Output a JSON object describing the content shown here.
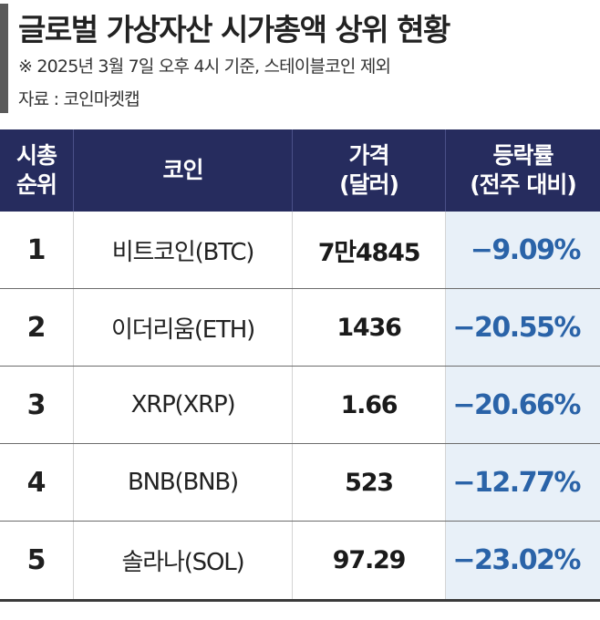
{
  "header": {
    "title": "글로벌 가상자산 시가총액 상위 현황",
    "note": "※ 2025년 3월 7일 오후 4시 기준, 스테이블코인 제외",
    "source": "자료 : 코인마켓캡"
  },
  "table": {
    "columns": [
      {
        "line1": "시총",
        "line2": "순위"
      },
      {
        "line1": "코인",
        "line2": ""
      },
      {
        "line1": "가격",
        "line2": "(달러)"
      },
      {
        "line1": "등락률",
        "line2": "(전주 대비)"
      }
    ],
    "rows": [
      {
        "rank": "1",
        "coin": "비트코인(BTC)",
        "price": "7만4845",
        "change": "−9.09%"
      },
      {
        "rank": "2",
        "coin": "이더리움(ETH)",
        "price": "1436",
        "change": "−20.55%"
      },
      {
        "rank": "3",
        "coin": "XRP(XRP)",
        "price": "1.66",
        "change": "−20.66%"
      },
      {
        "rank": "4",
        "coin": "BNB(BNB)",
        "price": "523",
        "change": "−12.77%"
      },
      {
        "rank": "5",
        "coin": "솔라나(SOL)",
        "price": "97.29",
        "change": "−23.02%"
      }
    ]
  },
  "colors": {
    "header_background": "#262c5e",
    "change_text": "#2a63a8",
    "change_background": "#e8f0f8",
    "accent_bar": "#5a5a5a"
  }
}
